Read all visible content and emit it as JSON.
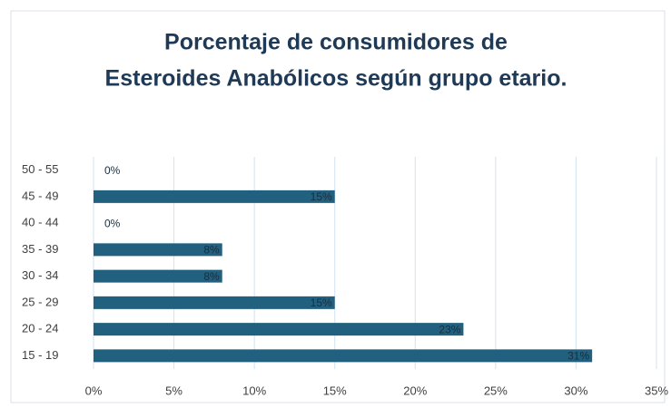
{
  "chart_data": {
    "type": "hbar",
    "title": [
      "Porcentaje de consumidores de",
      "Esteroides Anabólicos según grupo etario."
    ],
    "categories": [
      "15 - 19",
      "20 - 24",
      "25 - 29",
      "30 - 34",
      "35 - 39",
      "40 - 44",
      "45 - 49",
      "50 - 55"
    ],
    "values": [
      31,
      23,
      15,
      8,
      8,
      0,
      15,
      0
    ],
    "value_labels": [
      "31%",
      "23%",
      "15%",
      "8%",
      "8%",
      "0%",
      "15%",
      "0%"
    ],
    "color": "#22607f",
    "xlim": [
      0,
      35
    ],
    "xticks": [
      {
        "value": 0,
        "label": "0%"
      },
      {
        "value": 5,
        "label": "5%"
      },
      {
        "value": 10,
        "label": "10%"
      },
      {
        "value": 15,
        "label": "15%"
      },
      {
        "value": 20,
        "label": "20%"
      },
      {
        "value": 25,
        "label": "25%"
      },
      {
        "value": 30,
        "label": "30%"
      },
      {
        "value": 35,
        "label": "35%"
      }
    ],
    "grid": true
  }
}
